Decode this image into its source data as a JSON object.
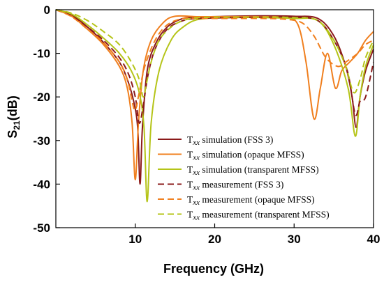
{
  "chart_data": {
    "type": "line",
    "xlabel": "Frequency (GHz)",
    "ylabel": {
      "base": "S",
      "sub": "21",
      "rest": "(dB)"
    },
    "xlim": [
      0,
      40
    ],
    "ylim": [
      -50,
      0
    ],
    "xticks": [
      10,
      20,
      30,
      40
    ],
    "yticks": [
      0,
      -10,
      -20,
      -30,
      -40,
      -50
    ],
    "grid": false,
    "legend_position": "bottom-right",
    "series": [
      {
        "label_prefix": "T",
        "label_sub": "xx",
        "label_rest": " simulation (FSS 3)",
        "color": "#8b1a1a",
        "dash": "solid",
        "points": [
          [
            0,
            0
          ],
          [
            2,
            -1.2
          ],
          [
            4,
            -4
          ],
          [
            6,
            -7.5
          ],
          [
            8,
            -12
          ],
          [
            9,
            -16
          ],
          [
            9.8,
            -21
          ],
          [
            10.3,
            -27
          ],
          [
            10.6,
            -40
          ],
          [
            10.9,
            -27
          ],
          [
            11.5,
            -14
          ],
          [
            12.5,
            -8
          ],
          [
            14,
            -4
          ],
          [
            16,
            -2
          ],
          [
            18,
            -1.7
          ],
          [
            22,
            -1.5
          ],
          [
            26,
            -1.4
          ],
          [
            30,
            -1.5
          ],
          [
            33,
            -2
          ],
          [
            35,
            -6
          ],
          [
            36.5,
            -13
          ],
          [
            37.3,
            -20
          ],
          [
            37.8,
            -27
          ],
          [
            38.3,
            -20
          ],
          [
            39,
            -14
          ],
          [
            40,
            -9
          ]
        ]
      },
      {
        "label_prefix": "T",
        "label_sub": "xx",
        "label_rest": " simulation (opaque MFSS)",
        "color": "#f07f1e",
        "dash": "solid",
        "points": [
          [
            0,
            0
          ],
          [
            2,
            -1.5
          ],
          [
            4,
            -4.5
          ],
          [
            6,
            -8
          ],
          [
            8,
            -13
          ],
          [
            9,
            -18
          ],
          [
            9.6,
            -26
          ],
          [
            10,
            -39
          ],
          [
            10.4,
            -26
          ],
          [
            11,
            -14
          ],
          [
            12,
            -7
          ],
          [
            13.5,
            -3
          ],
          [
            15,
            -1.5
          ],
          [
            18,
            -1.6
          ],
          [
            22,
            -1.6
          ],
          [
            26,
            -1.6
          ],
          [
            29,
            -1.8
          ],
          [
            30.5,
            -3.5
          ],
          [
            31.5,
            -12
          ],
          [
            32.5,
            -25
          ],
          [
            33.3,
            -18
          ],
          [
            34.2,
            -10
          ],
          [
            35.2,
            -18
          ],
          [
            36,
            -14
          ],
          [
            37,
            -12
          ],
          [
            38,
            -10
          ],
          [
            39,
            -7
          ],
          [
            40,
            -5
          ]
        ]
      },
      {
        "label_prefix": "T",
        "label_sub": "xx",
        "label_rest": " simulation (transparent MFSS)",
        "color": "#b5c418",
        "dash": "solid",
        "points": [
          [
            0,
            0
          ],
          [
            2,
            -1
          ],
          [
            4,
            -3.5
          ],
          [
            6,
            -6.5
          ],
          [
            8,
            -10
          ],
          [
            9.5,
            -14
          ],
          [
            10.5,
            -19
          ],
          [
            11.1,
            -27
          ],
          [
            11.5,
            -44
          ],
          [
            12,
            -26
          ],
          [
            13,
            -14
          ],
          [
            14.5,
            -7
          ],
          [
            16,
            -4
          ],
          [
            18,
            -2.2
          ],
          [
            22,
            -1.8
          ],
          [
            26,
            -1.8
          ],
          [
            30,
            -2
          ],
          [
            33,
            -2.5
          ],
          [
            35,
            -8
          ],
          [
            36.8,
            -18
          ],
          [
            37.7,
            -29
          ],
          [
            38.3,
            -20
          ],
          [
            39,
            -13
          ],
          [
            40,
            -8
          ]
        ]
      },
      {
        "label_prefix": "T",
        "label_sub": "xx",
        "label_rest": " measurement (FSS 3)",
        "color": "#8b1a1a",
        "dash": "dashed",
        "points": [
          [
            0,
            0
          ],
          [
            2,
            -1.4
          ],
          [
            4,
            -4
          ],
          [
            6,
            -7
          ],
          [
            8,
            -11
          ],
          [
            9.2,
            -15
          ],
          [
            10,
            -20
          ],
          [
            10.5,
            -26
          ],
          [
            11,
            -22
          ],
          [
            11.6,
            -15
          ],
          [
            12.5,
            -9
          ],
          [
            14,
            -4.5
          ],
          [
            16,
            -2.5
          ],
          [
            18,
            -2
          ],
          [
            22,
            -1.8
          ],
          [
            26,
            -1.7
          ],
          [
            30,
            -1.7
          ],
          [
            33,
            -2.5
          ],
          [
            35,
            -7
          ],
          [
            36.7,
            -14
          ],
          [
            37.7,
            -24
          ],
          [
            38.3,
            -21
          ],
          [
            39,
            -20
          ],
          [
            40,
            -12
          ]
        ]
      },
      {
        "label_prefix": "T",
        "label_sub": "xx",
        "label_rest": " measurement (opaque MFSS)",
        "color": "#f07f1e",
        "dash": "dashed",
        "points": [
          [
            0,
            0
          ],
          [
            2,
            -1.6
          ],
          [
            4,
            -4.5
          ],
          [
            6,
            -7.5
          ],
          [
            8,
            -12
          ],
          [
            9,
            -16
          ],
          [
            9.6,
            -21
          ],
          [
            10,
            -23
          ],
          [
            10.5,
            -19
          ],
          [
            11.2,
            -13
          ],
          [
            12.5,
            -7
          ],
          [
            14,
            -3.5
          ],
          [
            16,
            -2
          ],
          [
            18,
            -2
          ],
          [
            22,
            -2
          ],
          [
            26,
            -2
          ],
          [
            29,
            -2.2
          ],
          [
            31,
            -3
          ],
          [
            32.5,
            -6
          ],
          [
            34,
            -11
          ],
          [
            35.5,
            -13
          ],
          [
            36.5,
            -12
          ],
          [
            38,
            -10
          ],
          [
            39,
            -8
          ],
          [
            40,
            -7
          ]
        ]
      },
      {
        "label_prefix": "T",
        "label_sub": "xx",
        "label_rest": " measurement (transparent MFSS)",
        "color": "#b5c418",
        "dash": "dashed",
        "points": [
          [
            0,
            0
          ],
          [
            2,
            -0.8
          ],
          [
            4,
            -2.5
          ],
          [
            6,
            -5
          ],
          [
            8,
            -8
          ],
          [
            9.5,
            -12
          ],
          [
            10.5,
            -16
          ],
          [
            11,
            -20
          ],
          [
            11.4,
            -17
          ],
          [
            12,
            -12
          ],
          [
            13,
            -7
          ],
          [
            14.5,
            -4
          ],
          [
            16,
            -2.5
          ],
          [
            18,
            -1.8
          ],
          [
            22,
            -1.7
          ],
          [
            26,
            -1.7
          ],
          [
            30,
            -1.8
          ],
          [
            33,
            -2.5
          ],
          [
            35,
            -7
          ],
          [
            36.5,
            -13
          ],
          [
            37.5,
            -19
          ],
          [
            38.3,
            -16
          ],
          [
            39,
            -11
          ],
          [
            40,
            -7
          ]
        ]
      }
    ]
  }
}
